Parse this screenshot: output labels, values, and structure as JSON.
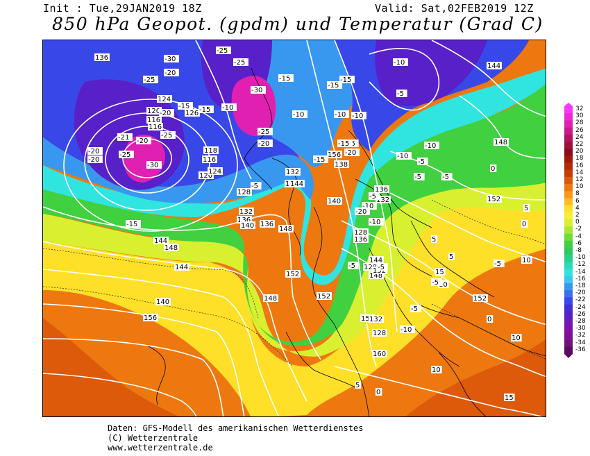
{
  "header": {
    "init_text": "Init : Tue,29JAN2019 18Z",
    "valid_text": "Valid: Sat,02FEB2019 12Z",
    "title": "850 hPa Geopot. (gpdm) und Temperatur (Grad C)"
  },
  "colorbar": {
    "ticks": [
      "32",
      "30",
      "28",
      "26",
      "24",
      "22",
      "20",
      "18",
      "16",
      "14",
      "12",
      "10",
      "8",
      "6",
      "4",
      "2",
      "0",
      "-2",
      "-4",
      "-6",
      "-8",
      "-10",
      "-12",
      "-14",
      "-16",
      "-18",
      "-20",
      "-22",
      "-24",
      "-26",
      "-28",
      "-30",
      "-32",
      "-34",
      "-36"
    ],
    "colors": [
      "#ff33ff",
      "#f028d8",
      "#e020b0",
      "#cc1888",
      "#b81060",
      "#a0103c",
      "#8c0a1a",
      "#a01808",
      "#b42a06",
      "#c83c06",
      "#dc5a0a",
      "#ee7810",
      "#ff9818",
      "#ffbc20",
      "#ffe028",
      "#f6f030",
      "#d8f030",
      "#a8e830",
      "#70dc38",
      "#40d040",
      "#30c860",
      "#28d088",
      "#28dcb8",
      "#30e4e0",
      "#38c8f0",
      "#3898f0",
      "#3870f0",
      "#3848e8",
      "#4030d8",
      "#5820c8",
      "#7018b8",
      "#8010a8",
      "#801098",
      "#70107a",
      "#5a0a60"
    ]
  },
  "map_labels": {
    "geopotential": [
      "136",
      "126",
      "124",
      "120",
      "116",
      "116",
      "118",
      "116",
      "120",
      "124",
      "128",
      "132",
      "136",
      "140",
      "144",
      "148",
      "152",
      "156",
      "132",
      "136",
      "140",
      "132",
      "136",
      "128",
      "136",
      "138",
      "140",
      "144",
      "148",
      "144",
      "148",
      "152",
      "156",
      "152",
      "144",
      "140",
      "136",
      "132",
      "128",
      "128",
      "144",
      "152",
      "148",
      "152",
      "160",
      "148",
      "152"
    ],
    "temperature": [
      "-25",
      "-30",
      "-25",
      "-20",
      "-20",
      "-15",
      "-25",
      "-21",
      "-20",
      "-20",
      "-25",
      "-30",
      "-20",
      "-15",
      "-15",
      "-10",
      "-25",
      "-20",
      "-30",
      "-25",
      "-15",
      "-10",
      "-15",
      "-10",
      "-5",
      "-15",
      "-10",
      "-5",
      "-10",
      "-5",
      "-10",
      "-5",
      "-5",
      "-5",
      "-10",
      "-15",
      "-20",
      "-15",
      "-20",
      "-10",
      "-5",
      "-5",
      "-10",
      "-5",
      "0",
      "5",
      "5",
      "10",
      "15",
      "10",
      "10",
      "10",
      "15",
      "5",
      "5",
      "0",
      "0",
      "-5",
      "-5",
      "-5",
      "-10",
      "0"
    ]
  },
  "footer": {
    "line1": "Daten: GFS-Modell des amerikanischen Wetterdienstes",
    "line2": "(C) Wetterzentrale",
    "line3": "www.wetterzentrale.de"
  }
}
